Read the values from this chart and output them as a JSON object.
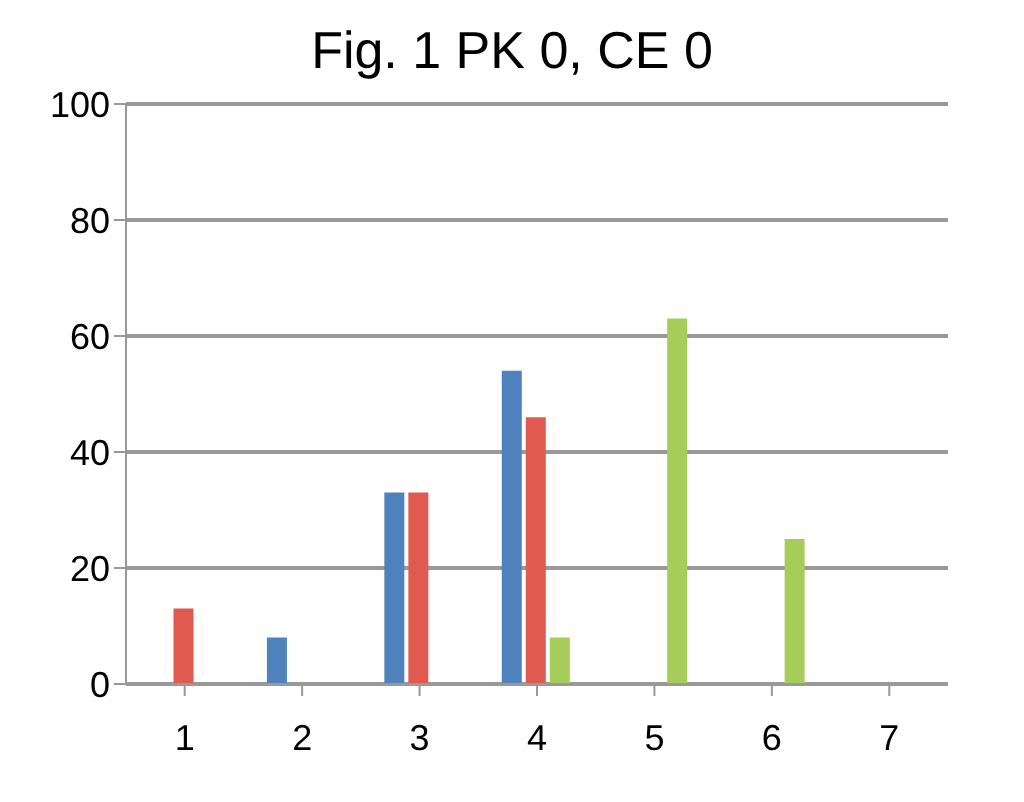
{
  "chart_data": {
    "type": "bar",
    "title": "Fig. 1 PK 0, CE 0",
    "categories": [
      "1",
      "2",
      "3",
      "4",
      "5",
      "6",
      "7"
    ],
    "series": [
      {
        "color": "#4f81bd",
        "values": [
          0,
          8,
          33,
          54,
          0,
          0,
          0
        ]
      },
      {
        "color": "#e05a50",
        "values": [
          13,
          0,
          33,
          46,
          0,
          0,
          0
        ]
      },
      {
        "color": "#a6cc5a",
        "values": [
          0,
          0,
          0,
          8,
          63,
          25,
          0
        ]
      }
    ],
    "ylim": [
      0,
      100
    ],
    "yticks": [
      0,
      20,
      40,
      60,
      80,
      100
    ],
    "grid": "y",
    "legend": false
  }
}
